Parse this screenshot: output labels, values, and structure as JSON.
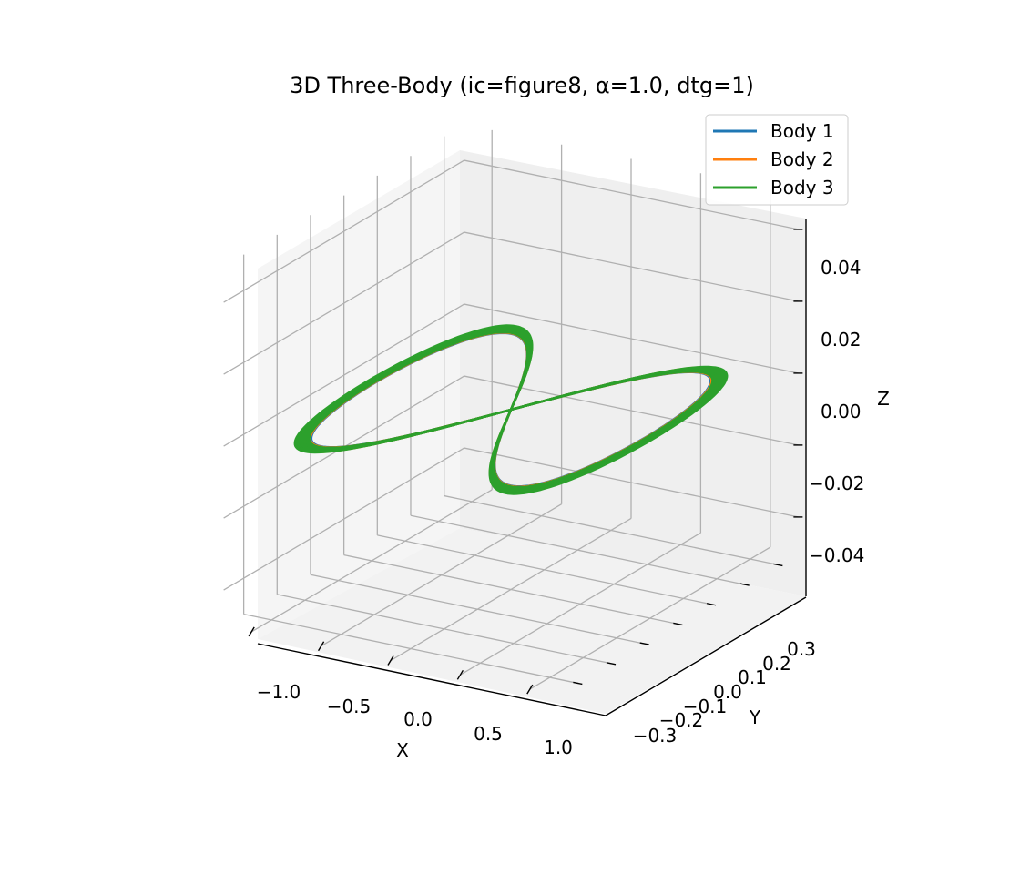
{
  "chart_data": {
    "type": "line",
    "projection": "3d",
    "title": "3D Three-Body (ic=figure8, α=1.0, dtg=1)",
    "xlabel": "X",
    "ylabel": "Y",
    "zlabel": "Z",
    "x_ticks": [
      "−1.0",
      "−0.5",
      "0.0",
      "0.5",
      "1.0"
    ],
    "y_ticks": [
      "−0.3",
      "−0.2",
      "−0.1",
      "0.0",
      "0.1",
      "0.2",
      "0.3"
    ],
    "z_ticks": [
      "−0.04",
      "−0.02",
      "0.00",
      "0.02",
      "0.04"
    ],
    "xlim": [
      -1.2,
      1.2
    ],
    "ylim": [
      -0.36,
      0.36
    ],
    "zlim": [
      -0.05,
      0.05
    ],
    "grid": true,
    "legend_position": "top-right",
    "series": [
      {
        "name": "Body 1",
        "color": "#1f77b4",
        "curve": "figure-eight orbit, z = 0",
        "x_amplitude": 1.0,
        "y_amplitude": 0.3
      },
      {
        "name": "Body 2",
        "color": "#ff7f0e",
        "curve": "figure-eight orbit, z = 0",
        "x_amplitude": 1.0,
        "y_amplitude": 0.3
      },
      {
        "name": "Body 3",
        "color": "#2ca02c",
        "curve": "figure-eight orbit, z = 0",
        "x_amplitude": 1.0,
        "y_amplitude": 0.3
      }
    ]
  }
}
